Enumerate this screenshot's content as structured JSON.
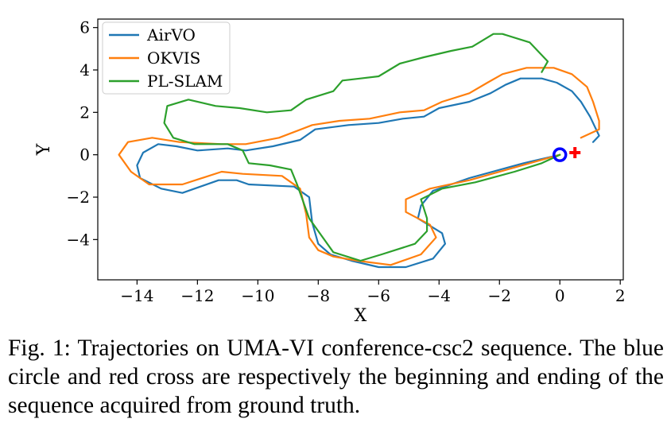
{
  "caption": "Fig. 1: Trajectories on UMA-VI conference-csc2 sequence. The blue circle and red cross are respectively the beginning and ending of the sequence acquired from ground truth.",
  "chart_data": {
    "type": "line",
    "xlabel": "X",
    "ylabel": "Y",
    "xlim": [
      -15.3,
      2.1
    ],
    "ylim": [
      -5.9,
      6.4
    ],
    "xticks": [
      -14,
      -12,
      -10,
      -8,
      -6,
      -4,
      -2,
      0,
      2
    ],
    "yticks": [
      -4,
      -2,
      0,
      2,
      4,
      6
    ],
    "xtick_labels": [
      "−14",
      "−12",
      "−10",
      "−8",
      "−6",
      "−4",
      "−2",
      "0",
      "2"
    ],
    "ytick_labels": [
      "−4",
      "−2",
      "0",
      "2",
      "4",
      "6"
    ],
    "grid": false,
    "legend_position": "top-left",
    "series": [
      {
        "name": "AirVO",
        "color": "#1f77b4",
        "points": [
          [
            0,
            0
          ],
          [
            -1.2,
            -0.4
          ],
          [
            -3,
            -1.1
          ],
          [
            -4.2,
            -1.7
          ],
          [
            -4.6,
            -2.4
          ],
          [
            -4.7,
            -3.0
          ],
          [
            -3.9,
            -3.7
          ],
          [
            -3.8,
            -4.2
          ],
          [
            -4.2,
            -4.9
          ],
          [
            -5.1,
            -5.3
          ],
          [
            -6.0,
            -5.3
          ],
          [
            -6.9,
            -5.0
          ],
          [
            -7.6,
            -4.7
          ],
          [
            -8.0,
            -4.2
          ],
          [
            -8.2,
            -3.2
          ],
          [
            -8.3,
            -2.0
          ],
          [
            -8.8,
            -1.5
          ],
          [
            -10.3,
            -1.4
          ],
          [
            -10.7,
            -1.2
          ],
          [
            -11.3,
            -1.2
          ],
          [
            -12.5,
            -1.8
          ],
          [
            -13.2,
            -1.6
          ],
          [
            -13.9,
            -1.1
          ],
          [
            -14.0,
            -0.5
          ],
          [
            -13.8,
            0.1
          ],
          [
            -13.3,
            0.5
          ],
          [
            -12.7,
            0.4
          ],
          [
            -12.0,
            0.2
          ],
          [
            -11.0,
            0.3
          ],
          [
            -10.4,
            0.2
          ],
          [
            -9.5,
            0.4
          ],
          [
            -8.6,
            0.7
          ],
          [
            -8.1,
            1.2
          ],
          [
            -7.0,
            1.4
          ],
          [
            -6.0,
            1.5
          ],
          [
            -5.2,
            1.7
          ],
          [
            -4.5,
            1.8
          ],
          [
            -4.0,
            2.2
          ],
          [
            -3.0,
            2.5
          ],
          [
            -2.3,
            2.9
          ],
          [
            -1.8,
            3.3
          ],
          [
            -1.3,
            3.6
          ],
          [
            -0.6,
            3.6
          ],
          [
            -0.1,
            3.4
          ],
          [
            0.4,
            3.0
          ],
          [
            0.7,
            2.5
          ],
          [
            1.0,
            1.8
          ],
          [
            1.2,
            1.2
          ],
          [
            1.3,
            0.9
          ],
          [
            1.1,
            0.6
          ]
        ]
      },
      {
        "name": "OKVIS",
        "color": "#ff7f0e",
        "points": [
          [
            0,
            0
          ],
          [
            -1.5,
            -0.6
          ],
          [
            -3,
            -1.2
          ],
          [
            -4.3,
            -1.6
          ],
          [
            -5.1,
            -2.1
          ],
          [
            -5.1,
            -2.7
          ],
          [
            -4.3,
            -3.3
          ],
          [
            -4.1,
            -3.9
          ],
          [
            -4.6,
            -4.7
          ],
          [
            -5.6,
            -5.2
          ],
          [
            -6.7,
            -5.0
          ],
          [
            -7.5,
            -4.8
          ],
          [
            -8.0,
            -4.5
          ],
          [
            -8.3,
            -3.9
          ],
          [
            -8.4,
            -2.8
          ],
          [
            -8.6,
            -1.6
          ],
          [
            -9.2,
            -1.0
          ],
          [
            -10.5,
            -0.9
          ],
          [
            -11.2,
            -0.8
          ],
          [
            -12.5,
            -1.4
          ],
          [
            -13.6,
            -1.4
          ],
          [
            -14.2,
            -0.8
          ],
          [
            -14.6,
            0.0
          ],
          [
            -14.3,
            0.6
          ],
          [
            -13.5,
            0.8
          ],
          [
            -12.6,
            0.6
          ],
          [
            -11.2,
            0.5
          ],
          [
            -10.4,
            0.5
          ],
          [
            -9.3,
            0.8
          ],
          [
            -8.2,
            1.4
          ],
          [
            -7.3,
            1.6
          ],
          [
            -6.3,
            1.7
          ],
          [
            -5.3,
            2.0
          ],
          [
            -4.5,
            2.1
          ],
          [
            -3.9,
            2.5
          ],
          [
            -3.0,
            2.9
          ],
          [
            -2.4,
            3.4
          ],
          [
            -1.9,
            3.8
          ],
          [
            -1.1,
            4.1
          ],
          [
            -0.2,
            4.1
          ],
          [
            0.4,
            3.8
          ],
          [
            0.9,
            3.2
          ],
          [
            1.1,
            2.5
          ],
          [
            1.3,
            1.6
          ],
          [
            1.3,
            1.2
          ],
          [
            1.0,
            1.0
          ],
          [
            0.7,
            0.8
          ]
        ]
      },
      {
        "name": "PL-SLAM",
        "color": "#2ca02c",
        "points": [
          [
            0,
            0
          ],
          [
            -0.6,
            -0.4
          ],
          [
            -1.5,
            -0.8
          ],
          [
            -2.8,
            -1.3
          ],
          [
            -3.9,
            -1.6
          ],
          [
            -4.6,
            -2.1
          ],
          [
            -4.4,
            -3.0
          ],
          [
            -4.4,
            -3.6
          ],
          [
            -4.8,
            -4.2
          ],
          [
            -5.9,
            -4.7
          ],
          [
            -6.6,
            -5.0
          ],
          [
            -7.5,
            -4.6
          ],
          [
            -7.9,
            -3.8
          ],
          [
            -8.3,
            -3.0
          ],
          [
            -8.5,
            -2.2
          ],
          [
            -8.7,
            -1.4
          ],
          [
            -8.9,
            -0.7
          ],
          [
            -9.6,
            -0.5
          ],
          [
            -10.3,
            -0.4
          ],
          [
            -10.5,
            0.2
          ],
          [
            -11.0,
            0.5
          ],
          [
            -12.1,
            0.5
          ],
          [
            -12.8,
            0.8
          ],
          [
            -13.1,
            1.5
          ],
          [
            -13.0,
            2.3
          ],
          [
            -12.3,
            2.6
          ],
          [
            -11.4,
            2.3
          ],
          [
            -10.6,
            2.2
          ],
          [
            -9.7,
            2.0
          ],
          [
            -8.9,
            2.1
          ],
          [
            -8.4,
            2.6
          ],
          [
            -7.5,
            3.0
          ],
          [
            -7.2,
            3.5
          ],
          [
            -6.6,
            3.6
          ],
          [
            -6.0,
            3.7
          ],
          [
            -5.3,
            4.3
          ],
          [
            -4.5,
            4.6
          ],
          [
            -3.6,
            4.9
          ],
          [
            -2.9,
            5.1
          ],
          [
            -2.2,
            5.7
          ],
          [
            -1.9,
            5.7
          ],
          [
            -1.0,
            5.3
          ],
          [
            -0.4,
            4.4
          ],
          [
            -0.6,
            3.9
          ]
        ]
      }
    ],
    "markers": [
      {
        "type": "circle",
        "x": 0.0,
        "y": 0.0,
        "color": "#0000ff"
      },
      {
        "type": "cross",
        "x": 0.5,
        "y": 0.1,
        "color": "#ff0000"
      }
    ]
  }
}
